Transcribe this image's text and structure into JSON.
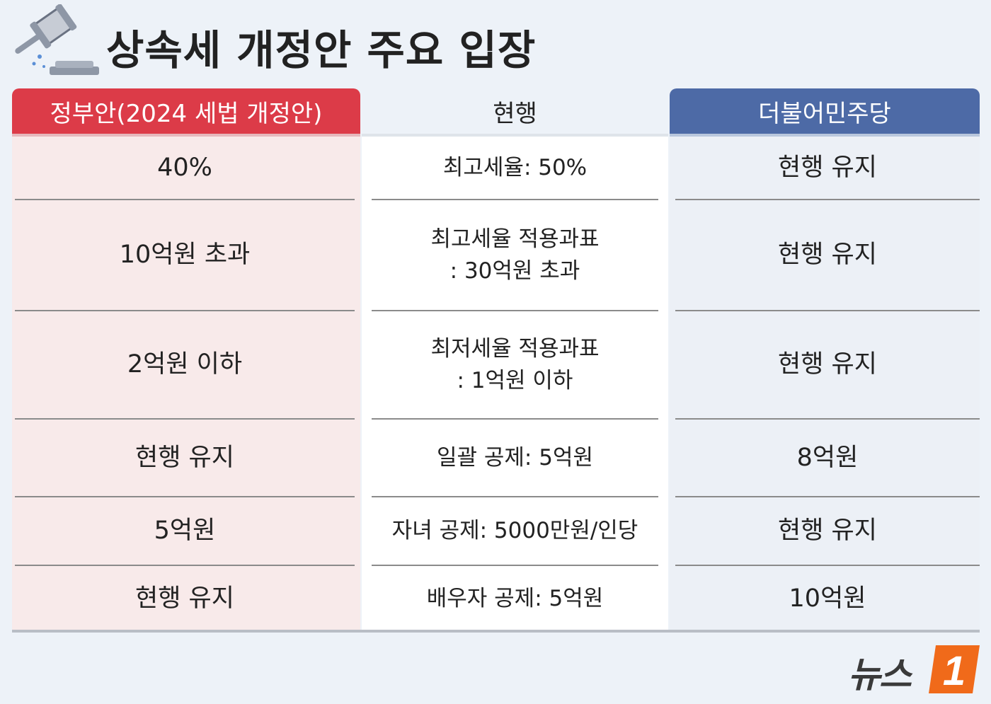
{
  "title": "상속세 개정안 주요 입장",
  "columns": {
    "gov": {
      "header": "정부안(2024 세법 개정안)",
      "rows": [
        "40%",
        "10억원 초과",
        "2억원 이하",
        "현행 유지",
        "5억원",
        "현행 유지"
      ]
    },
    "current": {
      "header": "현행",
      "rows": [
        [
          "최고세율: 50%"
        ],
        [
          "최고세율 적용과표",
          ": 30억원 초과"
        ],
        [
          "최저세율 적용과표",
          ": 1억원 이하"
        ],
        [
          "일괄 공제: 5억원"
        ],
        [
          "자녀 공제: 5000만원/인당"
        ],
        [
          "배우자 공제: 5억원"
        ]
      ]
    },
    "dem": {
      "header": "더불어민주당",
      "rows": [
        "현행 유지",
        "현행 유지",
        "현행 유지",
        "8억원",
        "현행 유지",
        "10억원"
      ]
    }
  },
  "colors": {
    "gov_header": "#dc3b48",
    "dem_header": "#4d6aa6",
    "logo_accent": "#f06a1a"
  },
  "logo": {
    "text": "뉴스",
    "badge": "1"
  }
}
